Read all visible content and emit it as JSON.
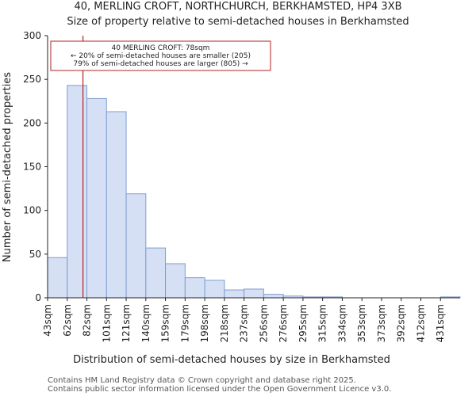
{
  "chart_data": {
    "type": "bar",
    "title_lines": [
      "40, MERLING CROFT, NORTHCHURCH, BERKHAMSTED, HP4 3XB",
      "Size of property relative to semi-detached houses in Berkhamsted"
    ],
    "xlabel": "Distribution of semi-detached houses by size in Berkhamsted",
    "ylabel": "Number of semi-detached properties",
    "categories": [
      "43sqm",
      "62sqm",
      "82sqm",
      "101sqm",
      "121sqm",
      "140sqm",
      "159sqm",
      "179sqm",
      "198sqm",
      "218sqm",
      "237sqm",
      "256sqm",
      "276sqm",
      "295sqm",
      "315sqm",
      "334sqm",
      "353sqm",
      "373sqm",
      "392sqm",
      "412sqm",
      "431sqm"
    ],
    "values": [
      46,
      243,
      228,
      213,
      119,
      57,
      39,
      23,
      20,
      9,
      10,
      4,
      2,
      1,
      1,
      0,
      0,
      0,
      0,
      0,
      1
    ],
    "ylim": [
      0,
      300
    ],
    "yticks": [
      0,
      50,
      100,
      150,
      200,
      250,
      300
    ],
    "bar_fill": "#d6e0f5",
    "bar_edge": "#7f9cd0",
    "marker": {
      "value_sqm": 78,
      "color": "#b22222"
    },
    "annotation": {
      "lines": [
        "40 MERLING CROFT: 78sqm",
        "← 20% of semi-detached houses are smaller (205)",
        "79% of semi-detached houses are larger (805) →"
      ],
      "border_color": "#b22222"
    }
  },
  "footer": {
    "line1": "Contains HM Land Registry data © Crown copyright and database right 2025.",
    "line2": "Contains public sector information licensed under the Open Government Licence v3.0."
  }
}
